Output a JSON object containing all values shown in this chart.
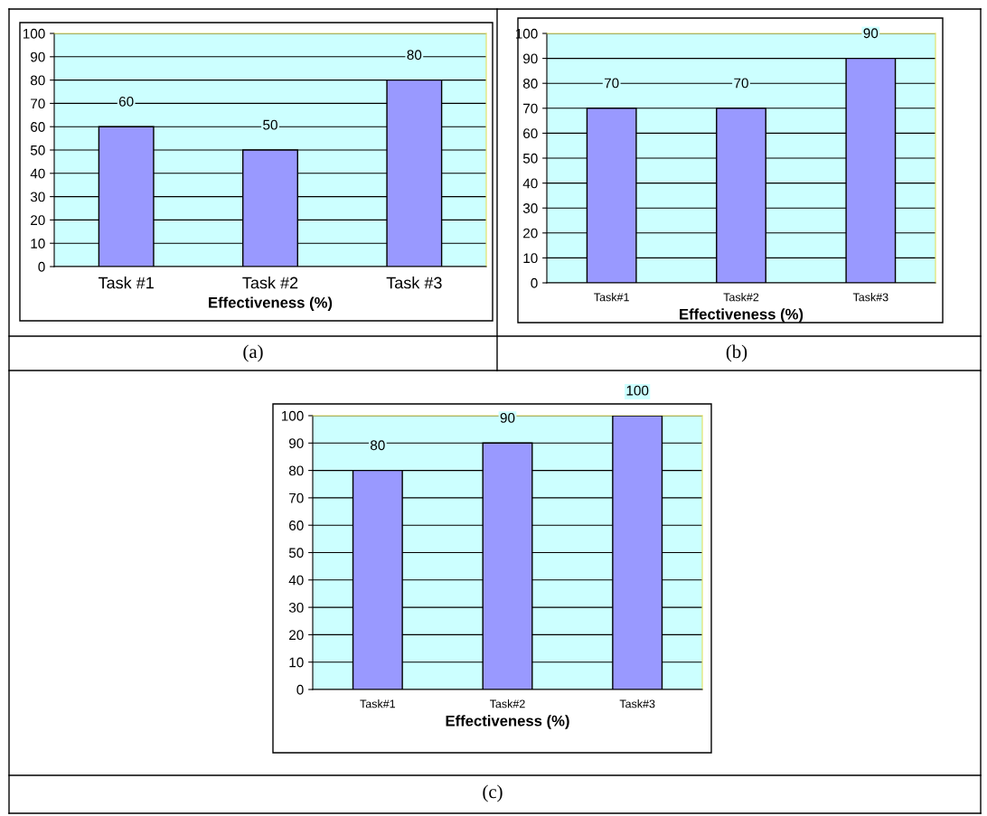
{
  "chart_data": [
    {
      "type": "bar",
      "categories": [
        "Task #1",
        "Task #2",
        "Task #3"
      ],
      "values": [
        60,
        50,
        80
      ],
      "color": "#9999ff",
      "xlabel": "Effectiveness (%)",
      "ylim": [
        0,
        100
      ],
      "yticks": [
        0,
        10,
        20,
        30,
        40,
        50,
        60,
        70,
        80,
        90,
        100
      ],
      "grid": "y",
      "data_labels": true,
      "annotations": [
        "(a)"
      ]
    },
    {
      "type": "bar",
      "categories": [
        "Task#1",
        "Task#2",
        "Task#3"
      ],
      "values": [
        70,
        70,
        90
      ],
      "color": "#9999ff",
      "xlabel": "Effectiveness (%)",
      "ylim": [
        0,
        100
      ],
      "yticks": [
        0,
        10,
        20,
        30,
        40,
        50,
        60,
        70,
        80,
        90,
        100
      ],
      "grid": "y",
      "data_labels": true,
      "annotations": [
        "(b)"
      ]
    },
    {
      "type": "bar",
      "categories": [
        "Task#1",
        "Task#2",
        "Task#3"
      ],
      "values": [
        80,
        90,
        100
      ],
      "color": "#9999ff",
      "xlabel": "Effectiveness (%)",
      "ylim": [
        0,
        100
      ],
      "yticks": [
        0,
        10,
        20,
        30,
        40,
        50,
        60,
        70,
        80,
        90,
        100
      ],
      "grid": "y",
      "data_labels": true,
      "annotations": [
        "(c)"
      ]
    }
  ]
}
